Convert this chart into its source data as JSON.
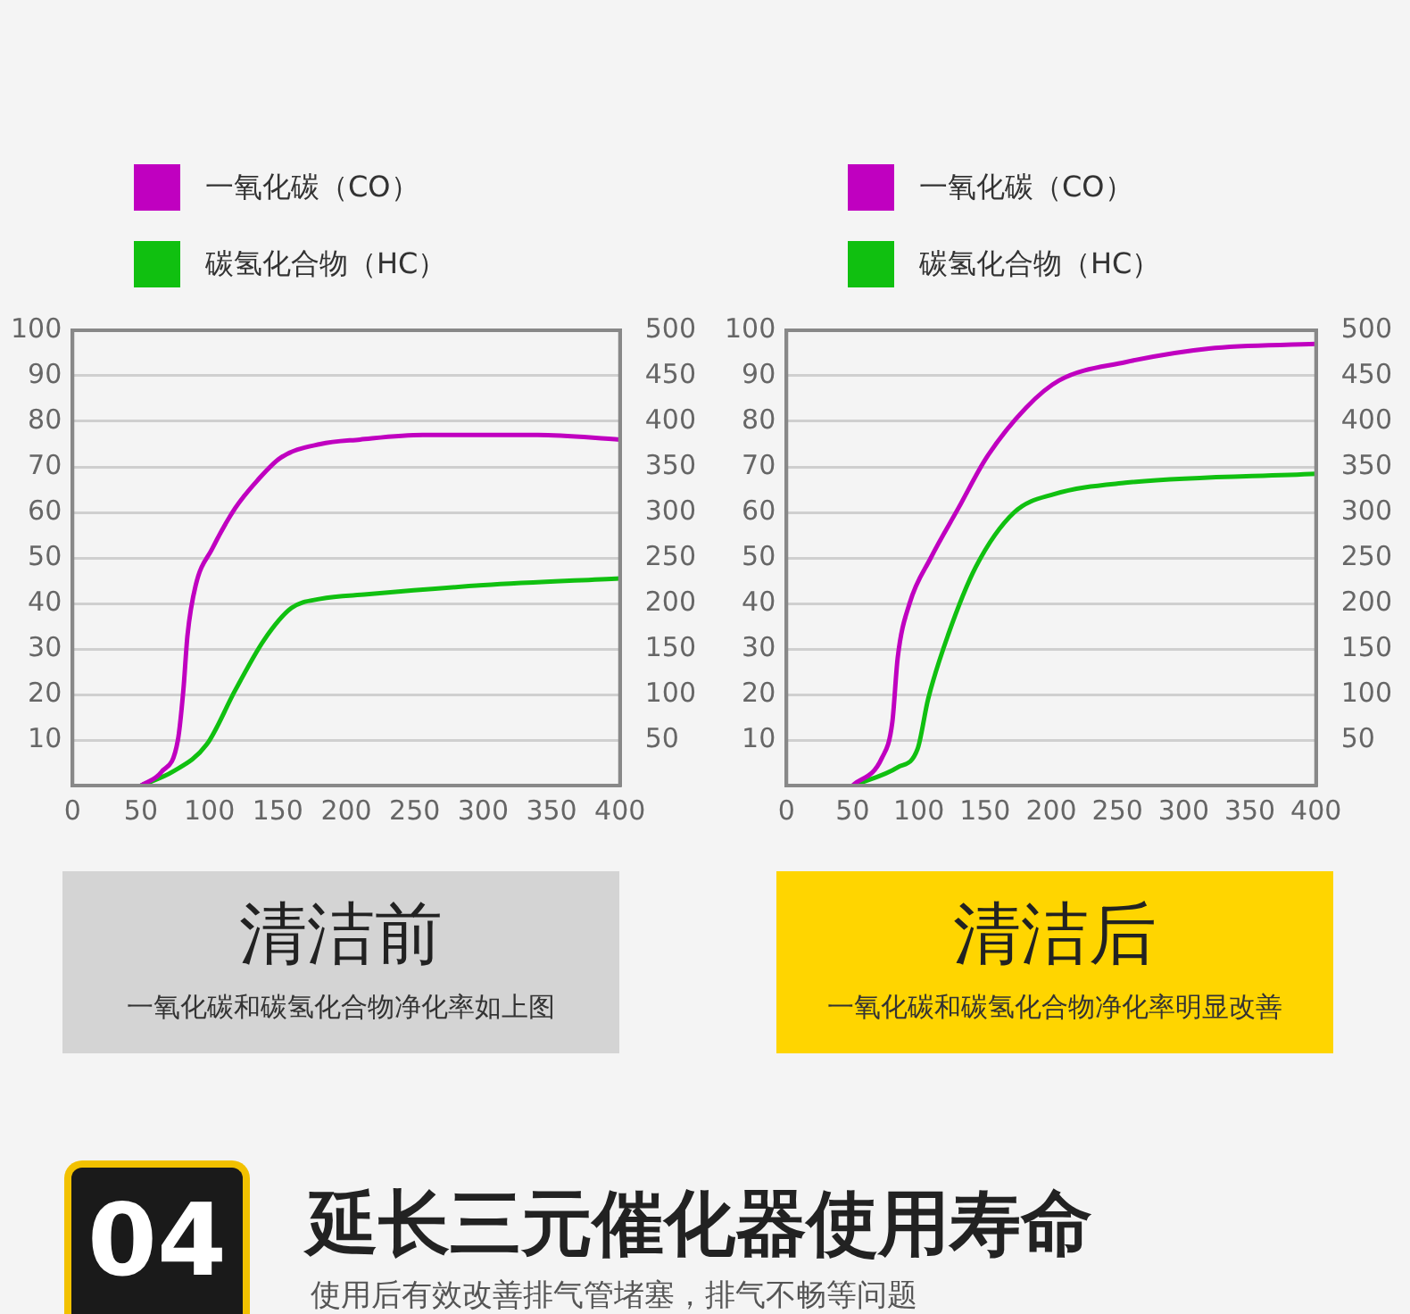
{
  "chart_data": [
    {
      "type": "line",
      "legend": "top",
      "grid": "y",
      "marker": "none",
      "xlim": [
        0,
        400
      ],
      "xticks": [
        0,
        50,
        100,
        150,
        200,
        250,
        300,
        350,
        400
      ],
      "ylim": [
        0,
        100
      ],
      "yticks": [
        10,
        20,
        30,
        40,
        50,
        60,
        70,
        80,
        90,
        100
      ],
      "y2lim": [
        0,
        500
      ],
      "y2ticks": [
        50,
        100,
        150,
        200,
        250,
        300,
        350,
        400,
        450,
        500
      ],
      "series": [
        {
          "name": "一氧化碳（CO）",
          "color": "#c000c0",
          "x": [
            50,
            65,
            77,
            81,
            84,
            90,
            102,
            119,
            135,
            152,
            181,
            210,
            256,
            300,
            340,
            400
          ],
          "values": [
            0,
            3,
            10,
            21,
            33,
            44,
            52,
            61,
            67,
            72,
            75,
            76,
            77,
            77,
            77,
            76
          ]
        },
        {
          "name": "碳氢化合物（HC）",
          "color": "#10c010",
          "x": [
            50,
            73,
            98,
            119,
            140,
            160,
            181,
            215,
            300,
            400
          ],
          "values": [
            0,
            3,
            9,
            21,
            32,
            39,
            41,
            42,
            44,
            45.5
          ]
        }
      ],
      "annotations": [
        "清洁前",
        "一氧化碳和碳氢化合物净化率如上图"
      ]
    },
    {
      "type": "line",
      "legend": "top",
      "grid": "y",
      "marker": "none",
      "xlim": [
        0,
        400
      ],
      "xticks": [
        0,
        50,
        100,
        150,
        200,
        250,
        300,
        350,
        400
      ],
      "ylim": [
        0,
        100
      ],
      "yticks": [
        10,
        20,
        30,
        40,
        50,
        60,
        70,
        80,
        90,
        100
      ],
      "y2lim": [
        0,
        500
      ],
      "y2ticks": [
        50,
        100,
        150,
        200,
        250,
        300,
        350,
        400,
        450,
        500
      ],
      "series": [
        {
          "name": "一氧化碳（CO）",
          "color": "#c000c0",
          "x": [
            50,
            72,
            80,
            84,
            93,
            109,
            130,
            151,
            181,
            206,
            256,
            319,
            400
          ],
          "values": [
            0,
            6,
            14,
            28,
            40,
            50,
            61,
            72,
            83,
            89,
            93,
            96,
            97
          ]
        },
        {
          "name": "碳氢化合物（HC）",
          "color": "#10c010",
          "x": [
            50,
            84,
            99,
            107,
            122,
            143,
            172,
            202,
            256,
            400
          ],
          "values": [
            0,
            4,
            8,
            19,
            33,
            48,
            60,
            64,
            66.5,
            68.5
          ]
        }
      ],
      "annotations": [
        "清洁后",
        "一氧化碳和碳氢化合物净化率明显改善"
      ]
    },
    {
      "type": "other",
      "title": "延长三元催化器使用寿命",
      "annotations": [
        "04",
        "使用后有效改善排气管堵塞，排气不畅等问题"
      ]
    }
  ]
}
